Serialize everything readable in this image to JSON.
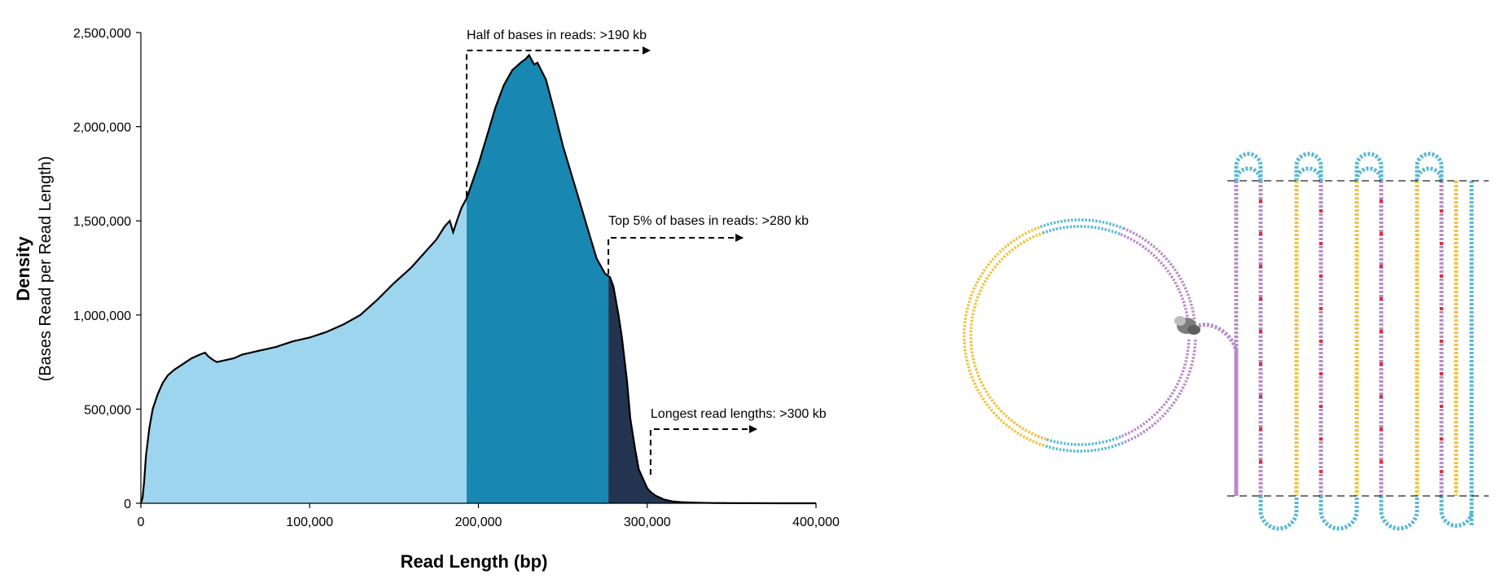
{
  "chart_data": {
    "type": "area",
    "xlabel": "Read Length (bp)",
    "ylabel": "Density",
    "ylabel_sub": "(Bases Read per Read Length)",
    "xlim": [
      0,
      400000
    ],
    "ylim": [
      0,
      2500000
    ],
    "x_ticks": [
      0,
      100000,
      200000,
      300000,
      400000
    ],
    "x_tick_labels": [
      "0",
      "100,000",
      "200,000",
      "300,000",
      "400,000"
    ],
    "y_ticks": [
      0,
      500000,
      1000000,
      1500000,
      2000000,
      2500000
    ],
    "y_tick_labels": [
      "0",
      "500,000",
      "1,000,000",
      "1,500,000",
      "2,000,000",
      "2,500,000"
    ],
    "grid": false,
    "series": [
      {
        "x": [
          0,
          1000,
          2000,
          3000,
          5000,
          7000,
          10000,
          13000,
          16000,
          20000,
          25000,
          30000,
          35000,
          38000,
          40000,
          43000,
          45000,
          50000,
          55000,
          60000,
          70000,
          80000,
          90000,
          100000,
          110000,
          120000,
          130000,
          140000,
          150000,
          160000,
          170000,
          175000,
          180000,
          183000,
          185000,
          188000,
          190000,
          193000,
          195000,
          200000,
          205000,
          210000,
          215000,
          220000,
          225000,
          228000,
          230000,
          233000,
          235000,
          240000,
          245000,
          250000,
          255000,
          260000,
          265000,
          270000,
          275000,
          278000,
          280000,
          283000,
          285000,
          288000,
          290000,
          293000,
          295000,
          298000,
          300000,
          302000,
          305000,
          310000,
          315000,
          320000,
          330000,
          340000,
          350000,
          360000,
          380000,
          400000
        ],
        "values": [
          0,
          30000,
          120000,
          250000,
          400000,
          500000,
          580000,
          640000,
          680000,
          710000,
          740000,
          770000,
          790000,
          800000,
          780000,
          760000,
          750000,
          760000,
          770000,
          790000,
          810000,
          830000,
          860000,
          880000,
          910000,
          950000,
          1000000,
          1080000,
          1170000,
          1250000,
          1350000,
          1400000,
          1470000,
          1500000,
          1440000,
          1520000,
          1570000,
          1620000,
          1670000,
          1800000,
          1950000,
          2100000,
          2220000,
          2300000,
          2340000,
          2360000,
          2380000,
          2330000,
          2340000,
          2250000,
          2080000,
          1900000,
          1750000,
          1600000,
          1450000,
          1300000,
          1220000,
          1200000,
          1150000,
          1000000,
          880000,
          650000,
          450000,
          280000,
          180000,
          120000,
          80000,
          60000,
          40000,
          20000,
          10000,
          6000,
          3000,
          1500,
          800,
          400,
          100,
          0
        ]
      }
    ],
    "bands": [
      {
        "from": 0,
        "to": 193000,
        "color": "#9ed5ee"
      },
      {
        "from": 193000,
        "to": 277000,
        "color": "#1888b2"
      },
      {
        "from": 277000,
        "to": 400000,
        "color": "#22344f"
      }
    ],
    "annotations": [
      {
        "text": "Half of bases in reads: >190 kb",
        "x": 193000
      },
      {
        "text": "Top 5% of bases in reads: >280 kb",
        "x": 277000
      },
      {
        "text": "Longest read lengths: >300 kb",
        "x": 302000
      }
    ]
  },
  "colors": {
    "yellow": "#f2c23c",
    "blue": "#5ab8d6",
    "purple": "#b88cc8",
    "red": "#d8323c",
    "polymerase": "#8a8a8a"
  }
}
